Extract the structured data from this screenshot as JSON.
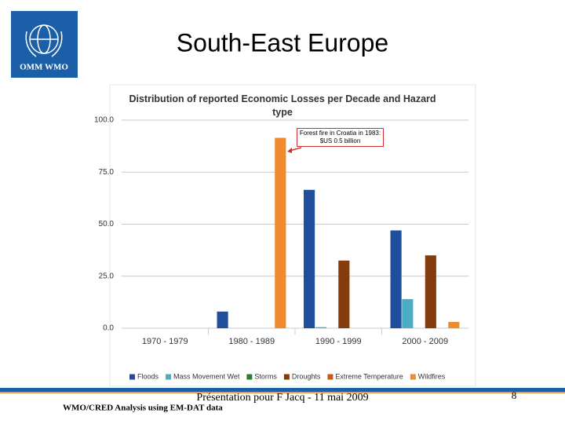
{
  "slide": {
    "title": "South-East Europe",
    "logo_text": "OMM WMO",
    "footer_center": "Présentation pour F Jacq - 11 mai 2009",
    "footer_left": "WMO/CRED Analysis using EM-DAT data",
    "page_number": "8"
  },
  "chart_data": {
    "type": "bar",
    "title": "Distribution of reported Economic Losses per Decade and Hazard type",
    "categories": [
      "1970 - 1979",
      "1980 - 1989",
      "1990 - 1999",
      "2000 - 2009"
    ],
    "series": [
      {
        "name": "Floods",
        "color": "#1f4e9c",
        "values": [
          0,
          8,
          66.5,
          47
        ]
      },
      {
        "name": "Mass Movement Wet",
        "color": "#4bacc6",
        "values": [
          0,
          0,
          0.5,
          14
        ]
      },
      {
        "name": "Storms",
        "color": "#2e7d32",
        "values": [
          0,
          0,
          0,
          0
        ]
      },
      {
        "name": "Droughts",
        "color": "#843c0c",
        "values": [
          0,
          0,
          32.5,
          35
        ]
      },
      {
        "name": "Extreme Temperature",
        "color": "#c55a11",
        "values": [
          0,
          0,
          0,
          0
        ]
      },
      {
        "name": "Wildfires",
        "color": "#f08a2c",
        "values": [
          0,
          91.5,
          0,
          3
        ]
      }
    ],
    "ylim": [
      0,
      100
    ],
    "yticks": [
      {
        "value": 0,
        "label": "0.0"
      },
      {
        "value": 25,
        "label": "25.0"
      },
      {
        "value": 50,
        "label": "50.0"
      },
      {
        "value": 75,
        "label": "75.0"
      },
      {
        "value": 100,
        "label": "100.0"
      }
    ],
    "grid": true,
    "legend": "bottom",
    "annotation": "Forest fire in Croatia in 1983: $US 0.5 billion"
  }
}
